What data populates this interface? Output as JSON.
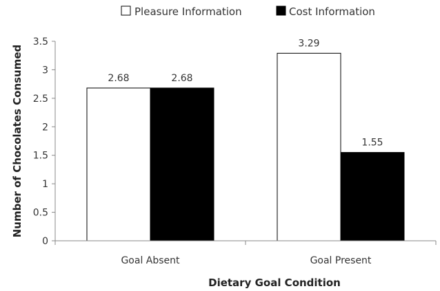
{
  "chart_data": {
    "type": "bar",
    "categories": [
      "Goal Absent",
      "Goal Present"
    ],
    "series": [
      {
        "name": "Pleasure Information",
        "values": [
          2.68,
          3.29
        ],
        "color": "#ffffff"
      },
      {
        "name": "Cost Information",
        "values": [
          2.68,
          1.55
        ],
        "color": "#000000"
      }
    ],
    "data_labels": [
      [
        "2.68",
        "3.29"
      ],
      [
        "2.68",
        "1.55"
      ]
    ],
    "xlabel": "Dietary Goal Condition",
    "ylabel": "Number of Chocolates Consumed",
    "ylim": [
      0,
      3.5
    ],
    "yticks": [
      "0",
      "0.5",
      "1",
      "1.5",
      "2",
      "2.5",
      "3",
      "3.5"
    ],
    "grid": false,
    "legend_position": "top"
  }
}
